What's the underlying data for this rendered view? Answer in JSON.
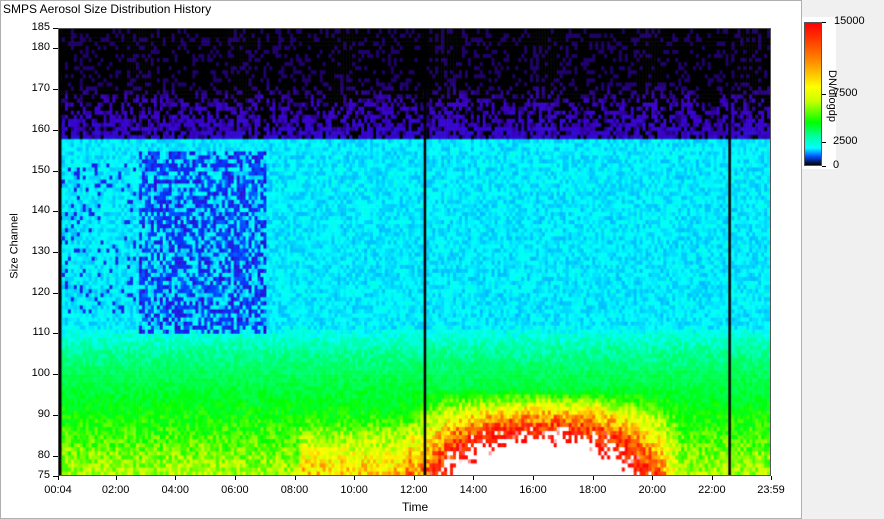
{
  "window": {
    "title": "SMPS Aerosol Size Distribution History"
  },
  "chart_data": {
    "type": "heatmap",
    "title": "",
    "xlabel": "Time",
    "ylabel": "Size Channel",
    "xlim": [
      "00:04",
      "23:59"
    ],
    "ylim": [
      75,
      185
    ],
    "x_ticks": [
      "00:04",
      "02:00",
      "04:00",
      "06:00",
      "08:00",
      "10:00",
      "12:00",
      "14:00",
      "16:00",
      "18:00",
      "20:00",
      "22:00",
      "23:59"
    ],
    "y_ticks": [
      75,
      80,
      90,
      100,
      110,
      120,
      130,
      140,
      150,
      160,
      170,
      180,
      185
    ],
    "colorbar": {
      "label": "DN/dlogdp",
      "range": [
        0,
        15000
      ],
      "ticks": [
        "15000",
        "7500",
        "2500",
        "0"
      ],
      "colors": [
        "#000000",
        "#0050ff",
        "#00ffff",
        "#00ff00",
        "#ffff00",
        "#ff8000",
        "#ff0000",
        "#ffffff"
      ]
    },
    "gaps": [
      "00:04",
      "12:20",
      "22:35"
    ],
    "features": [
      {
        "description": "low-concentration band",
        "size_channel_range": [
          110,
          155
        ],
        "time_range": [
          "02:40",
          "07:00"
        ],
        "value": 500
      },
      {
        "description": "high-concentration region",
        "size_channel_range": [
          75,
          95
        ],
        "time_range": [
          "12:00",
          "20:30"
        ],
        "value": 15000
      }
    ]
  },
  "colors": {
    "background": "#f0f0f0",
    "plot_border": "#555555"
  }
}
